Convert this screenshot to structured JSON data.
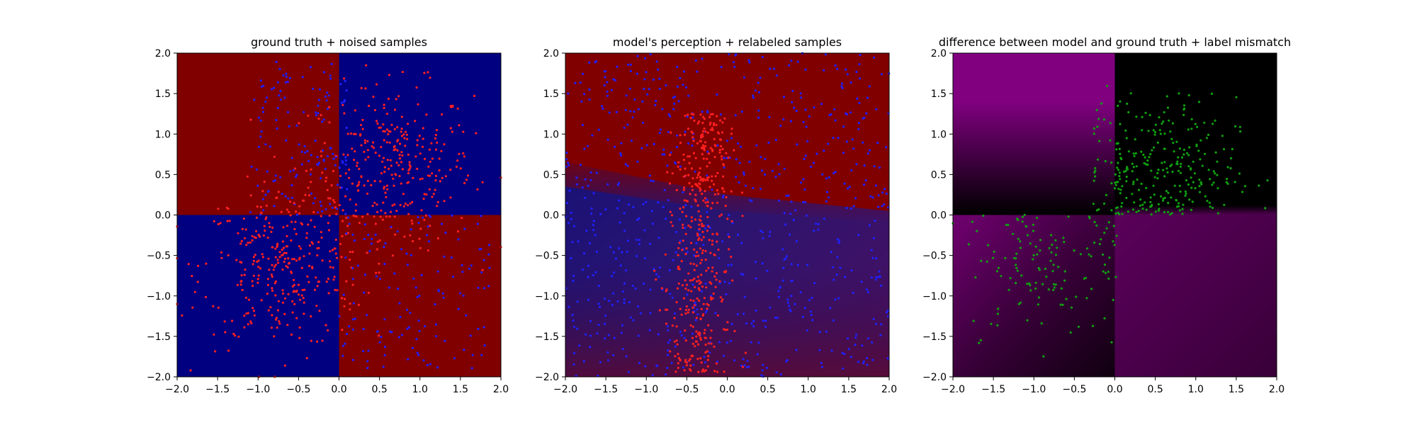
{
  "chart_data": [
    {
      "type": "heatmap",
      "title": "ground truth + noised samples",
      "xlabel": "",
      "ylabel": "",
      "xlim": [
        -2.0,
        2.0
      ],
      "ylim": [
        -2.0,
        2.0
      ],
      "xticks": [
        "−2.0",
        "−1.5",
        "−1.0",
        "−0.5",
        "0.0",
        "0.5",
        "1.0",
        "1.5",
        "2.0"
      ],
      "yticks": [
        "−2.0",
        "−1.5",
        "−1.0",
        "−0.5",
        "0.0",
        "0.5",
        "1.0",
        "1.5",
        "2.0"
      ],
      "grid": false,
      "background": {
        "kind": "xor-quadrants",
        "description_colors": {
          "x_pos_y_pos": "#000080",
          "x_neg_y_neg": "#000080",
          "x_pos_y_neg": "#800000",
          "x_neg_y_pos": "#800000"
        }
      },
      "series": [
        {
          "color": "#ff2020",
          "cloud": "x_pos_y_pos_dense",
          "n": 320
        },
        {
          "color": "#2020ff",
          "cloud": "x_neg_y_pos_sparse",
          "n": 140
        },
        {
          "color": "#ff2020",
          "cloud": "x_neg_y_neg_dense",
          "n": 320
        },
        {
          "color": "#2020ff",
          "cloud": "x_pos_y_neg_sparse",
          "n": 140
        }
      ]
    },
    {
      "type": "heatmap",
      "title": "model's perception + relabeled samples",
      "xlabel": "",
      "ylabel": "",
      "xlim": [
        -2.0,
        2.0
      ],
      "ylim": [
        -2.0,
        2.0
      ],
      "xticks": [
        "−2.0",
        "−1.5",
        "−1.0",
        "−0.5",
        "0.0",
        "0.5",
        "1.0",
        "1.5",
        "2.0"
      ],
      "yticks": [
        "−2.0",
        "−1.5",
        "−1.0",
        "−0.5",
        "0.0",
        "0.5",
        "1.0",
        "1.5",
        "2.0"
      ],
      "grid": false,
      "background": {
        "kind": "model-gradient",
        "description_colors": {
          "upper": "#800000",
          "lower_band": "#1a1a80",
          "bottom_right": "#5a1060"
        }
      },
      "series": [
        {
          "color": "#2020ff",
          "cloud": "uniform_spread",
          "n": 700
        },
        {
          "color": "#ff2020",
          "cloud": "vertical_band_x_-0.3",
          "n": 420
        }
      ]
    },
    {
      "type": "heatmap",
      "title": "difference between model and ground truth + label mismatch",
      "xlabel": "",
      "ylabel": "",
      "xlim": [
        -2.0,
        2.0
      ],
      "ylim": [
        -2.0,
        2.0
      ],
      "xticks": [
        "−2.0",
        "−1.5",
        "−1.0",
        "−0.5",
        "0.0",
        "0.5",
        "1.0",
        "1.5",
        "2.0"
      ],
      "yticks": [
        "−2.0",
        "−1.5",
        "−1.0",
        "−0.5",
        "0.0",
        "0.5",
        "1.0",
        "1.5",
        "2.0"
      ],
      "grid": false,
      "background": {
        "kind": "difference",
        "description_colors": {
          "x_neg_y_pos": "#800080",
          "x_pos_y_pos": "#000000",
          "lower_half": "#4a0a4a"
        }
      },
      "series": [
        {
          "color": "#10a010",
          "cloud": "x_pos_y_pos_mismatch",
          "n": 260
        },
        {
          "color": "#10a010",
          "cloud": "x_neg_y_neg_mismatch",
          "n": 110
        },
        {
          "color": "#10a010",
          "cloud": "center_column_mismatch",
          "n": 60
        }
      ]
    }
  ]
}
